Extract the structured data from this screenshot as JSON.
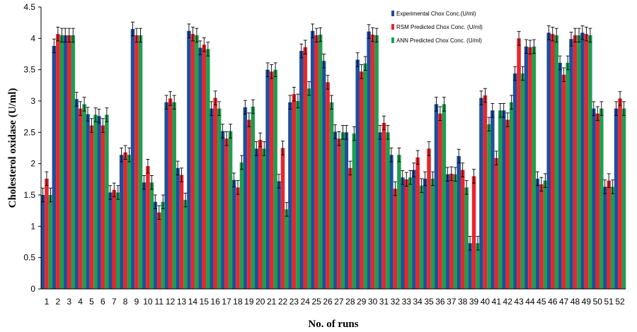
{
  "chart_data": {
    "type": "bar",
    "xlabel": "No. of runs",
    "ylabel": "Cholesterol oxidase (U/ml)",
    "ylim": [
      0,
      4.5
    ],
    "yticks": [
      "0",
      "0.5",
      "1",
      "1.5",
      "2",
      "2.5",
      "3",
      "3.5",
      "4",
      "4.5"
    ],
    "grid": false,
    "legend_position": "top-right",
    "categories": [
      "1",
      "2",
      "3",
      "4",
      "5",
      "6",
      "7",
      "8",
      "9",
      "10",
      "11",
      "12",
      "13",
      "14",
      "15",
      "16",
      "17",
      "18",
      "19",
      "20",
      "21",
      "22",
      "23",
      "24",
      "25",
      "26",
      "27",
      "28",
      "29",
      "30",
      "31",
      "32",
      "33",
      "34",
      "35",
      "36",
      "37",
      "38",
      "39",
      "40",
      "41",
      "42",
      "43",
      "44",
      "45",
      "46",
      "47",
      "48",
      "49",
      "50",
      "51",
      "52"
    ],
    "series": [
      {
        "name": "Experimental Chox Conc.(U/ml)",
        "color": "#1f4e9e",
        "values": [
          1.5,
          3.88,
          4.05,
          3.03,
          2.79,
          2.76,
          1.54,
          2.14,
          4.15,
          1.7,
          1.39,
          2.98,
          1.93,
          4.12,
          3.85,
          2.88,
          2.52,
          1.74,
          2.9,
          2.24,
          3.5,
          1.72,
          2.98,
          3.8,
          4.12,
          3.64,
          2.51,
          2.5,
          3.66,
          4.11,
          2.5,
          2.14,
          1.78,
          1.9,
          1.76,
          2.95,
          1.83,
          2.12,
          0.73,
          3.05,
          2.85,
          2.85,
          3.44,
          3.87,
          1.76,
          4.09,
          3.61,
          3.99,
          4.09,
          2.88,
          1.63,
          2.88
        ]
      },
      {
        "name": "RSM Predicted Chox Conc. (U/ml)",
        "color": "#e8262c",
        "values": [
          1.76,
          4.07,
          4.05,
          2.88,
          2.61,
          2.61,
          1.58,
          2.18,
          4.05,
          1.96,
          1.22,
          3.04,
          1.82,
          4.07,
          3.9,
          3.05,
          2.4,
          1.62,
          2.7,
          2.38,
          3.47,
          2.25,
          3.11,
          3.86,
          4.05,
          3.3,
          2.4,
          1.93,
          3.47,
          4.06,
          2.65,
          1.6,
          1.75,
          2.1,
          2.24,
          2.8,
          1.84,
          1.9,
          1.8,
          3.09,
          2.09,
          2.7,
          4.0,
          3.86,
          1.67,
          4.07,
          3.42,
          4.05,
          4.07,
          2.8,
          1.73,
          3.04
        ]
      },
      {
        "name": "ANN Predicted Chox Conc. (U/ml)",
        "color": "#1e9e50",
        "values": [
          1.5,
          4.05,
          4.05,
          2.95,
          2.78,
          2.78,
          1.54,
          2.14,
          4.05,
          1.7,
          1.39,
          2.98,
          1.42,
          4.05,
          3.83,
          2.88,
          2.52,
          2.02,
          2.91,
          2.24,
          3.5,
          1.27,
          3.0,
          3.2,
          4.06,
          2.98,
          2.5,
          2.48,
          3.6,
          4.05,
          2.5,
          2.14,
          1.78,
          1.65,
          1.76,
          2.95,
          1.83,
          1.62,
          0.73,
          2.63,
          2.85,
          2.98,
          3.44,
          3.87,
          1.73,
          4.05,
          3.61,
          4.05,
          4.05,
          2.88,
          1.63,
          2.88
        ]
      }
    ]
  }
}
